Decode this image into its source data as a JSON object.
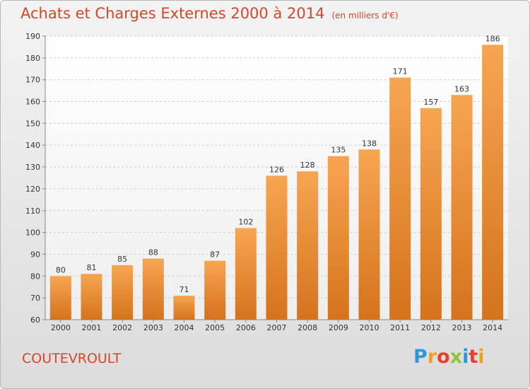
{
  "title": "Achats et Charges Externes 2000 à 2014",
  "unit": "(en milliers d'€)",
  "commune": "COUTEVROULT",
  "logo": {
    "letters": [
      "P",
      "r",
      "o",
      "x",
      "i",
      "t",
      "i"
    ],
    "colors": [
      "#2a9ad6",
      "#f0a020",
      "#e8402a",
      "#8cc43a",
      "#2a9ad6",
      "#e8402a",
      "#f0a020"
    ]
  },
  "colors": {
    "bar_top": "#f7a552",
    "bar_bottom": "#d5731c",
    "accent": "#d0482a"
  },
  "chart_data": {
    "type": "bar",
    "categories": [
      "2000",
      "2001",
      "2002",
      "2003",
      "2004",
      "2005",
      "2006",
      "2007",
      "2008",
      "2009",
      "2010",
      "2011",
      "2012",
      "2013",
      "2014"
    ],
    "values": [
      80,
      81,
      85,
      88,
      71,
      87,
      102,
      126,
      128,
      135,
      138,
      171,
      157,
      163,
      186
    ],
    "ylim": [
      60,
      190
    ],
    "yticks": [
      60,
      70,
      80,
      90,
      100,
      110,
      120,
      130,
      140,
      150,
      160,
      170,
      180,
      190
    ],
    "grid": true
  }
}
